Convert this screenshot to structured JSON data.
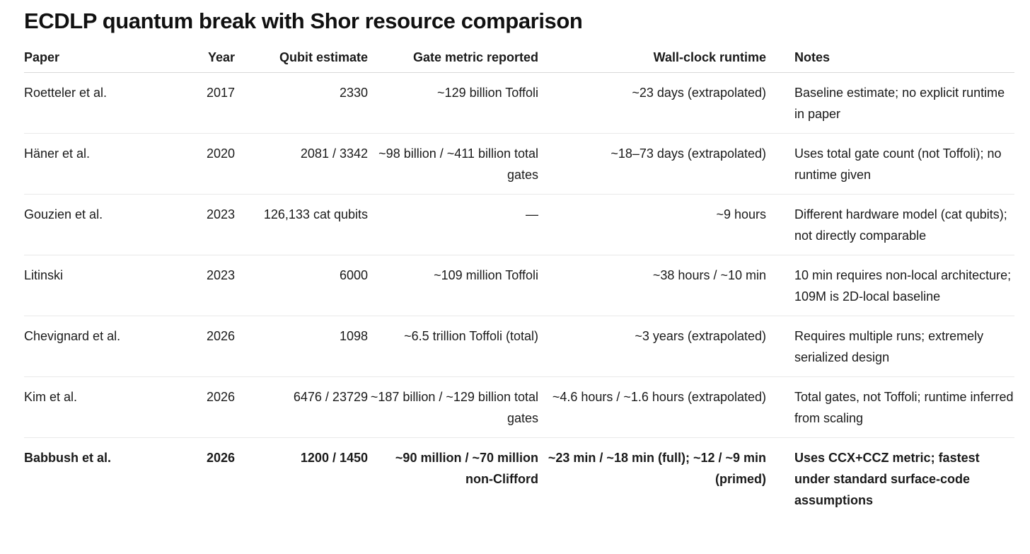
{
  "title": "ECDLP quantum break with Shor resource comparison",
  "table": {
    "headers": {
      "paper": "Paper",
      "year": "Year",
      "qubit": "Qubit estimate",
      "gate": "Gate metric reported",
      "wall": "Wall-clock runtime",
      "notes": "Notes"
    },
    "rows": [
      {
        "paper": "Roetteler et al.",
        "year": "2017",
        "qubit": "2330",
        "gate": "~129 billion Toffoli",
        "wall": "~23 days (extrapolated)",
        "notes": "Baseline estimate; no explicit runtime in paper"
      },
      {
        "paper": "Häner et al.",
        "year": "2020",
        "qubit": "2081 / 3342",
        "gate": "~98 billion / ~411 billion total gates",
        "wall": "~18–73 days (extrapolated)",
        "notes": "Uses total gate count (not Toffoli); no runtime given"
      },
      {
        "paper": "Gouzien et al.",
        "year": "2023",
        "qubit": "126,133 cat qubits",
        "gate": "—",
        "wall": "~9 hours",
        "notes": "Different hardware model (cat qubits); not directly comparable"
      },
      {
        "paper": "Litinski",
        "year": "2023",
        "qubit": "6000",
        "gate": "~109 million Toffoli",
        "wall": "~38 hours / ~10 min",
        "notes": "10 min requires non-local architecture; 109M is 2D-local baseline"
      },
      {
        "paper": "Chevignard et al.",
        "year": "2026",
        "qubit": "1098",
        "gate": "~6.5 trillion Toffoli (total)",
        "wall": "~3 years (extrapolated)",
        "notes": "Requires multiple runs; extremely serialized design"
      },
      {
        "paper": "Kim et al.",
        "year": "2026",
        "qubit": "6476 / 23729",
        "gate": "~187 billion / ~129 billion total gates",
        "wall": "~4.6 hours / ~1.6 hours (extrapolated)",
        "notes": "Total gates, not Toffoli; runtime inferred from scaling"
      },
      {
        "paper": "Babbush et al.",
        "year": "2026",
        "qubit": "1200 / 1450",
        "gate": "~90 million / ~70 million non-Clifford",
        "wall": "~23 min / ~18 min (full); ~12 / ~9 min (primed)",
        "notes": "Uses CCX+CCZ metric; fastest under standard surface-code assumptions"
      }
    ]
  }
}
